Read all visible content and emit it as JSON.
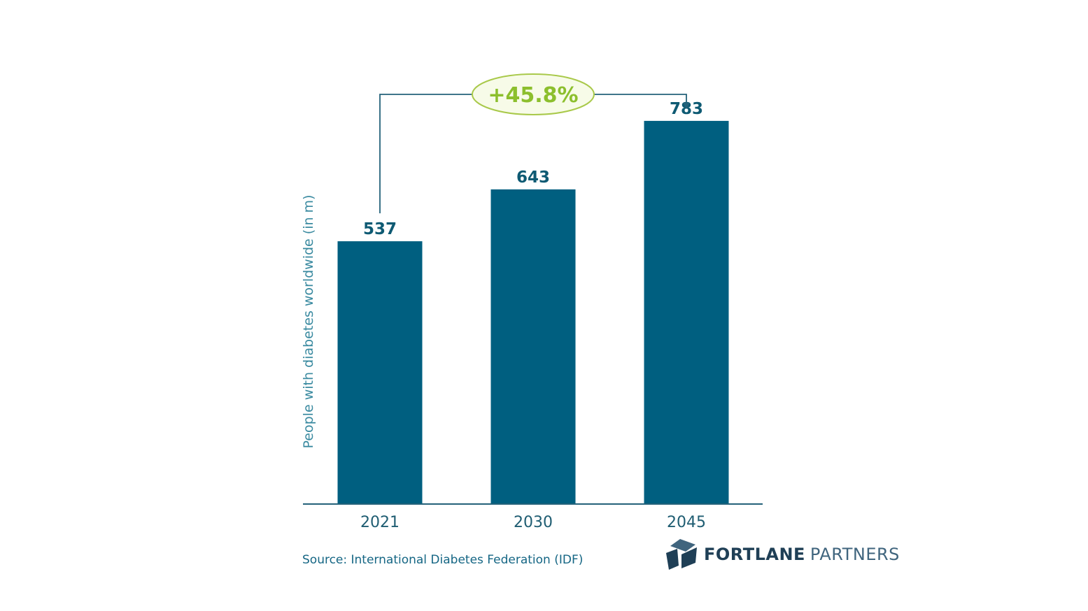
{
  "colors": {
    "bar": "#005f80",
    "value_text": "#0e5a73",
    "tick_text": "#1f5d72",
    "axis_label": "#3a8aa0",
    "axis_line": "#24627a",
    "connector": "#24627a",
    "growth_fill": "#f7fbe8",
    "growth_stroke": "#a9c94a",
    "growth_text": "#8cbf2d",
    "source_text": "#156684",
    "brand_dark": "#1f3f56",
    "brand_light": "#40657e"
  },
  "chart_data": {
    "type": "bar",
    "categories": [
      "2021",
      "2030",
      "2045"
    ],
    "values": [
      537,
      643,
      783
    ],
    "data_labels": [
      "537",
      "643",
      "783"
    ],
    "ylabel": "People with diabetes worldwide (in m)",
    "xlabel": "",
    "ylim": [
      0,
      1000
    ],
    "grid": false,
    "legend": "none",
    "annotation": {
      "text": "+45.8%",
      "from_category": "2021",
      "to_category": "2045"
    }
  },
  "source": "Source: International Diabetes Federation (IDF)",
  "brand": {
    "logo_icon": "cube-logo-icon",
    "name_bold": "FORTLANE",
    "name_light": "PARTNERS"
  }
}
